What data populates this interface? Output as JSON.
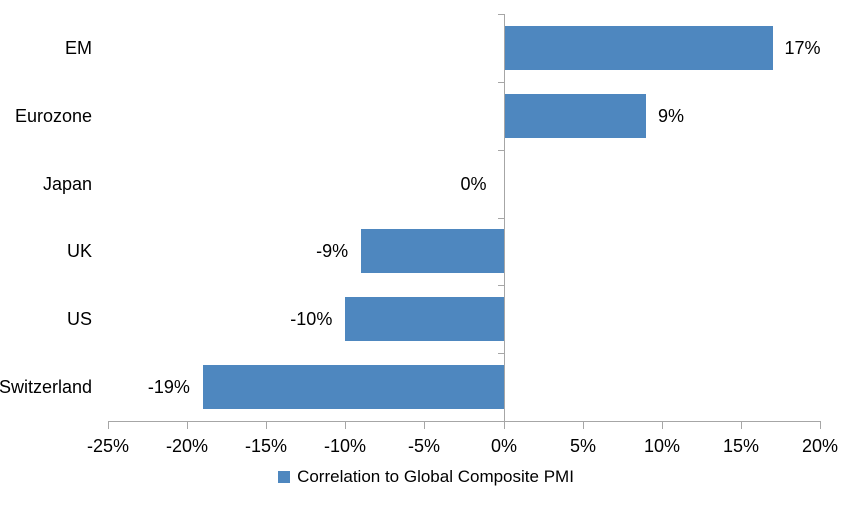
{
  "chart_data": {
    "type": "bar",
    "orientation": "horizontal",
    "title": "",
    "categories": [
      "EM",
      "Eurozone",
      "Japan",
      "UK",
      "US",
      "Switzerland"
    ],
    "values": [
      17,
      9,
      0,
      -9,
      -10,
      -19
    ],
    "data_labels": [
      "17%",
      "9%",
      "0%",
      "-9%",
      "-10%",
      "-19%"
    ],
    "series": [
      {
        "name": "Correlation to Global Composite PMI",
        "values": [
          17,
          9,
          0,
          -9,
          -10,
          -19
        ]
      }
    ],
    "xlim": [
      -25,
      20
    ],
    "x_ticks": [
      -25,
      -20,
      -15,
      -10,
      -5,
      0,
      5,
      10,
      15,
      20
    ],
    "x_tick_labels": [
      "-25%",
      "-20%",
      "-15%",
      "-10%",
      "-5%",
      "0%",
      "5%",
      "10%",
      "15%",
      "20%"
    ],
    "grid": false,
    "legend_position": "bottom",
    "colors": {
      "bar": "#4e87bf",
      "axis": "#a6a6a6",
      "text": "#000000",
      "background": "#ffffff"
    }
  },
  "legend": {
    "label": "Correlation to Global Composite PMI"
  }
}
